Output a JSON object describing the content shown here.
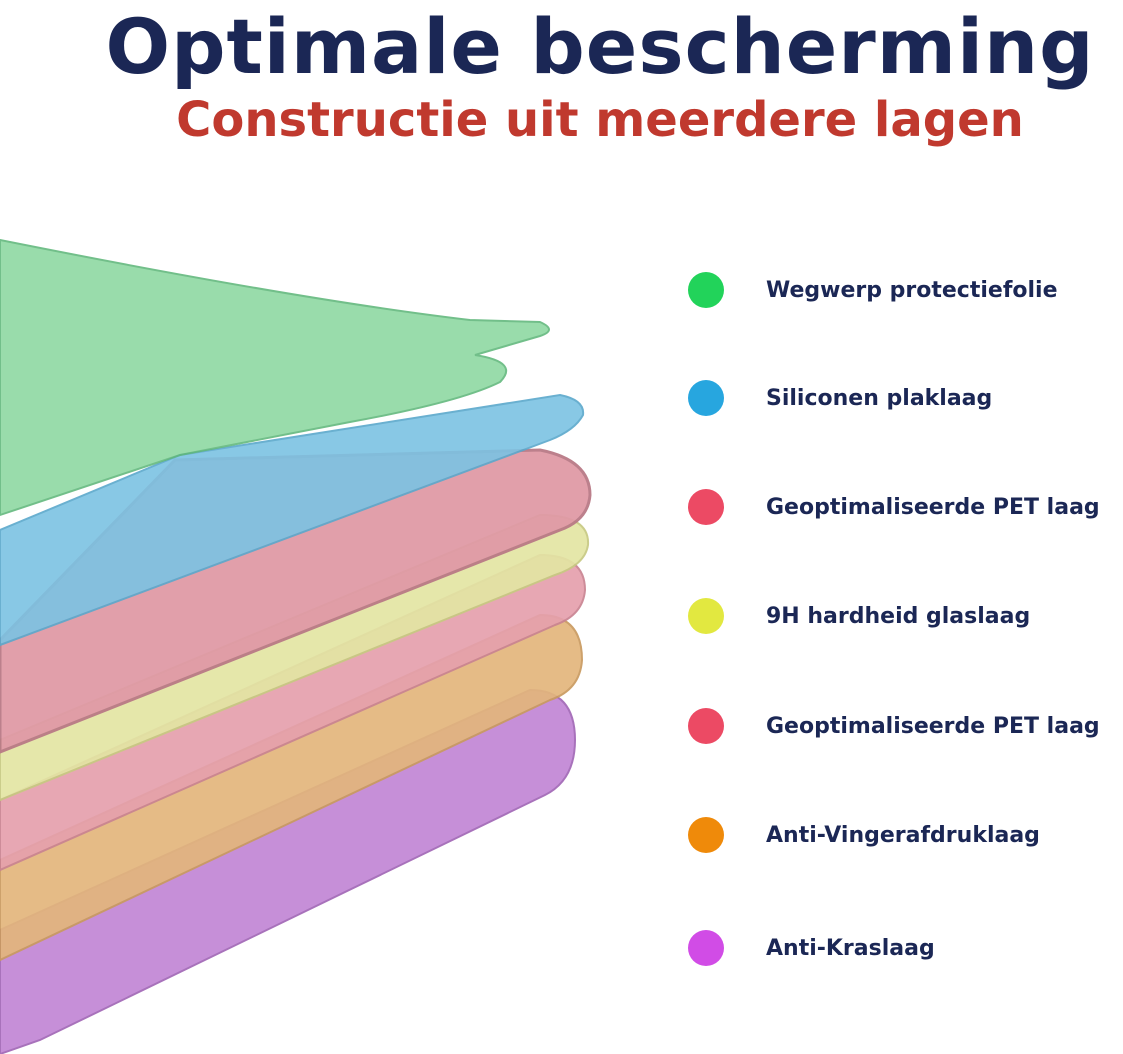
{
  "header": {
    "title": "Optimale bescherming",
    "subtitle": "Constructie uit meerdere lagen"
  },
  "legend": [
    {
      "label": "Wegwerp protectiefolie",
      "color": "#22d35a"
    },
    {
      "label": "Siliconen plaklaag",
      "color": "#27a6df"
    },
    {
      "label": "Geoptimaliseerde PET laag",
      "color": "#ec4a64"
    },
    {
      "label": "9H hardheid glaslaag",
      "color": "#e2e840"
    },
    {
      "label": "Geoptimaliseerde PET laag",
      "color": "#ec4a64"
    },
    {
      "label": "Anti-Vingerafdruklaag",
      "color": "#ef8a0a"
    },
    {
      "label": "Anti-Kraslaag",
      "color": "#d14ce6"
    }
  ]
}
